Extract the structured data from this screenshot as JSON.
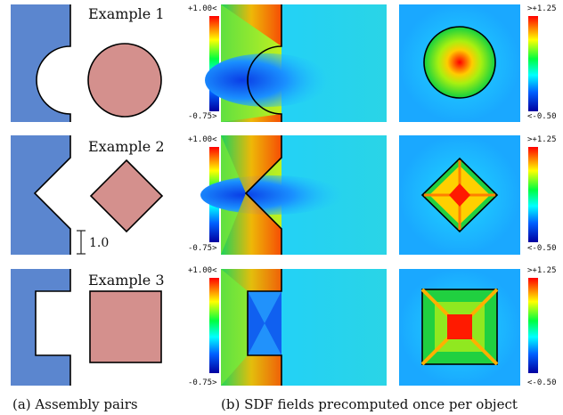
{
  "colors": {
    "part_a": "#5b86cf",
    "part_b": "#d4908d",
    "outline": "#000000",
    "sdf_field_bg": "#25d2e4",
    "sdf_field_low": "#0a40e0",
    "sdf_field_high": "#ff2a00"
  },
  "rows": [
    {
      "id": "example-1",
      "title": "Example 1",
      "shape": "semicircle-notch-and-circle"
    },
    {
      "id": "example-2",
      "title": "Example 2",
      "shape": "v-notch-and-diamond"
    },
    {
      "id": "example-3",
      "title": "Example 3",
      "shape": "rectangular-notch-and-square"
    }
  ],
  "scale_bar": {
    "label": "1.0"
  },
  "colorbar_left": {
    "max_label": "+1.00<",
    "min_label": "-0.75>"
  },
  "colorbar_right": {
    "max_label": ">+1.25",
    "min_label": "<-0.50"
  },
  "captions": {
    "left": "(a) Assembly pairs",
    "right": "(b) SDF fields precomputed once per object"
  }
}
